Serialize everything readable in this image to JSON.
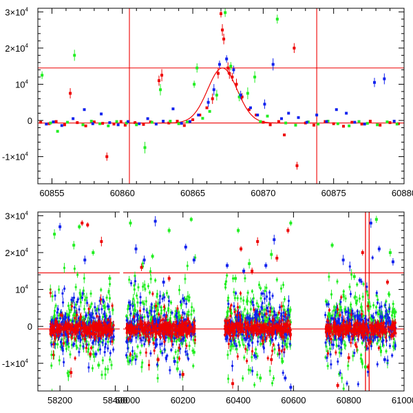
{
  "colors": {
    "red": "#ee0000",
    "green": "#22ee22",
    "blue": "#1122ee",
    "frame": "#000000"
  },
  "chart_data": [
    {
      "type": "scatter",
      "xlim": [
        60854,
        60880
      ],
      "ylim": [
        -17500,
        31000
      ],
      "xticks": [
        {
          "v": 60855,
          "label": "60855"
        },
        {
          "v": 60860,
          "label": "60860"
        },
        {
          "v": 60865,
          "label": "60865"
        },
        {
          "v": 60870,
          "label": "60870"
        },
        {
          "v": 60875,
          "label": "60875"
        },
        {
          "v": 60880,
          "label": "60880"
        }
      ],
      "yticks": [
        {
          "v": 30000,
          "base": "3×10",
          "exp": "4"
        },
        {
          "v": 20000,
          "base": "2×10",
          "exp": "4"
        },
        {
          "v": 10000,
          "base": "10",
          "exp": "4"
        },
        {
          "v": 0,
          "base": "0",
          "exp": ""
        },
        {
          "v": -10000,
          "base": "-1×10",
          "exp": "4"
        }
      ],
      "hlines": [
        14500,
        -700
      ],
      "vlines": [
        60860.5,
        60873.8
      ],
      "model": {
        "type": "gaussian",
        "x0": 60867.1,
        "peak": 14500,
        "sigma": 1.05,
        "baseline": -700,
        "x_range": [
          60860.5,
          60873.8
        ]
      },
      "series": [
        {
          "color": "red",
          "points": [
            [
              60854.2,
              -500
            ],
            [
              60854.8,
              -900
            ],
            [
              60855.3,
              -300
            ],
            [
              60855.9,
              -1200
            ],
            [
              60856.3,
              7500
            ],
            [
              60856.8,
              -600
            ],
            [
              60857.4,
              -1500
            ],
            [
              60858.0,
              -400
            ],
            [
              60858.6,
              -800
            ],
            [
              60858.9,
              -10000
            ],
            [
              60859.4,
              -1000
            ],
            [
              60859.9,
              -300
            ],
            [
              60860.2,
              -1300
            ],
            [
              60860.9,
              -600
            ],
            [
              60861.5,
              -1100
            ],
            [
              60862.0,
              -400
            ],
            [
              60862.6,
              11000
            ],
            [
              60862.8,
              12500
            ],
            [
              60863.3,
              -700
            ],
            [
              60863.9,
              -200
            ],
            [
              60864.4,
              -1400
            ],
            [
              60865.0,
              200
            ],
            [
              60865.5,
              1500
            ],
            [
              60866.0,
              3500
            ],
            [
              60866.4,
              6000
            ],
            [
              60866.8,
              13000
            ],
            [
              60867.0,
              29500
            ],
            [
              60867.1,
              25000
            ],
            [
              60867.2,
              22500
            ],
            [
              60867.5,
              14500
            ],
            [
              60867.6,
              13000
            ],
            [
              60867.8,
              12000
            ],
            [
              60868.1,
              10000
            ],
            [
              60868.5,
              6500
            ],
            [
              60869.0,
              3000
            ],
            [
              60869.5,
              1500
            ],
            [
              60870.0,
              -500
            ],
            [
              60870.5,
              -1200
            ],
            [
              60871.1,
              -300
            ],
            [
              60871.5,
              -4000
            ],
            [
              60872.2,
              20000
            ],
            [
              60872.4,
              -12500
            ],
            [
              60873.0,
              -700
            ],
            [
              60873.6,
              -1300
            ],
            [
              60874.4,
              -300
            ],
            [
              60875.0,
              -900
            ],
            [
              60875.7,
              -1600
            ],
            [
              60876.3,
              -500
            ],
            [
              60877.0,
              -1000
            ],
            [
              60877.6,
              -200
            ],
            [
              60878.3,
              -1300
            ],
            [
              60879.0,
              -600
            ],
            [
              60879.6,
              -900
            ]
          ]
        },
        {
          "color": "green",
          "points": [
            [
              60854.3,
              12500
            ],
            [
              60854.9,
              -700
            ],
            [
              60855.4,
              -3000
            ],
            [
              60856.1,
              -500
            ],
            [
              60856.6,
              18000
            ],
            [
              60857.2,
              -1200
            ],
            [
              60857.8,
              -200
            ],
            [
              60858.4,
              -900
            ],
            [
              60859.0,
              -1500
            ],
            [
              60859.6,
              -300
            ],
            [
              60860.3,
              -700
            ],
            [
              60861.0,
              -1200
            ],
            [
              60861.6,
              -7500
            ],
            [
              60862.1,
              -500
            ],
            [
              60862.7,
              8500
            ],
            [
              60863.4,
              -200
            ],
            [
              60864.0,
              -900
            ],
            [
              60864.6,
              -400
            ],
            [
              60865.1,
              10000
            ],
            [
              60865.3,
              14500
            ],
            [
              60865.7,
              600
            ],
            [
              60866.2,
              2500
            ],
            [
              60866.7,
              7000
            ],
            [
              60867.3,
              29800
            ],
            [
              60867.7,
              15000
            ],
            [
              60868.3,
              6500
            ],
            [
              60868.9,
              7500
            ],
            [
              60869.4,
              12000
            ],
            [
              60869.8,
              -300
            ],
            [
              60870.3,
              1200
            ],
            [
              60871.0,
              28000
            ],
            [
              60871.6,
              -700
            ],
            [
              60872.3,
              -1300
            ],
            [
              60873.2,
              -400
            ],
            [
              60873.9,
              -1000
            ],
            [
              60874.6,
              -200
            ],
            [
              60875.3,
              -900
            ],
            [
              60876.1,
              -1500
            ],
            [
              60876.8,
              -300
            ],
            [
              60877.4,
              -800
            ],
            [
              60878.1,
              -1200
            ],
            [
              60878.8,
              -400
            ],
            [
              60879.5,
              -1000
            ]
          ]
        },
        {
          "color": "blue",
          "points": [
            [
              60854.6,
              -1000
            ],
            [
              60855.1,
              -400
            ],
            [
              60855.7,
              -1400
            ],
            [
              60856.5,
              500
            ],
            [
              60857.3,
              3000
            ],
            [
              60857.9,
              -900
            ],
            [
              60858.5,
              1800
            ],
            [
              60859.1,
              -600
            ],
            [
              60859.7,
              -1200
            ],
            [
              60860.4,
              -300
            ],
            [
              60861.2,
              -900
            ],
            [
              60861.8,
              500
            ],
            [
              60862.4,
              -1000
            ],
            [
              60862.9,
              -200
            ],
            [
              60863.6,
              3200
            ],
            [
              60864.2,
              -800
            ],
            [
              60864.8,
              -300
            ],
            [
              60865.4,
              1500
            ],
            [
              60866.1,
              5000
            ],
            [
              60866.5,
              8500
            ],
            [
              60866.9,
              15500
            ],
            [
              60867.4,
              17000
            ],
            [
              60867.9,
              14000
            ],
            [
              60868.4,
              7000
            ],
            [
              60869.1,
              3500
            ],
            [
              60869.6,
              1500
            ],
            [
              60870.1,
              4500
            ],
            [
              60870.7,
              15500
            ],
            [
              60871.3,
              500
            ],
            [
              60871.8,
              2000
            ],
            [
              60872.5,
              800
            ],
            [
              60873.1,
              -500
            ],
            [
              60873.8,
              1500
            ],
            [
              60874.5,
              -300
            ],
            [
              60875.2,
              3000
            ],
            [
              60875.9,
              2000
            ],
            [
              60876.5,
              -500
            ],
            [
              60877.2,
              -1000
            ],
            [
              60877.9,
              10500
            ],
            [
              60878.6,
              11500
            ],
            [
              60879.3,
              -200
            ]
          ]
        }
      ]
    },
    {
      "type": "scatter",
      "xlim": [
        58120,
        61000
      ],
      "ylim": [
        -17500,
        31000
      ],
      "breaks": [
        [
          58415,
          59985
        ]
      ],
      "xticks": [
        {
          "v": 58200,
          "label": "58200"
        },
        {
          "v": 58400,
          "label": "58400"
        },
        {
          "v": 60000,
          "label": "60000"
        },
        {
          "v": 60200,
          "label": "60200"
        },
        {
          "v": 60400,
          "label": "60400"
        },
        {
          "v": 60600,
          "label": "60600"
        },
        {
          "v": 60800,
          "label": "60800"
        },
        {
          "v": 61000,
          "label": "61000"
        }
      ],
      "yticks": [
        {
          "v": 30000,
          "base": "3×10",
          "exp": "4"
        },
        {
          "v": 20000,
          "base": "2×10",
          "exp": "4"
        },
        {
          "v": 10000,
          "base": "10",
          "exp": "4"
        },
        {
          "v": 0,
          "base": "0",
          "exp": ""
        },
        {
          "v": -10000,
          "base": "-1×10",
          "exp": "4"
        }
      ],
      "hlines": [
        14500,
        -700
      ],
      "vlines": [
        60860.5,
        60873.8
      ],
      "clusters": [
        [
          58165,
          58395
        ],
        [
          59995,
          60245
        ],
        [
          60350,
          60590
        ],
        [
          60715,
          60970
        ]
      ],
      "series": [
        {
          "color": "red",
          "outliers": [
            [
              58240,
              -12500
            ],
            [
              58280,
              28000
            ],
            [
              58300,
              27500
            ],
            [
              58350,
              23000
            ],
            [
              58310,
              -7500
            ],
            [
              60050,
              16000
            ],
            [
              60110,
              -9000
            ],
            [
              60150,
              13000
            ],
            [
              60200,
              -13000
            ],
            [
              60380,
              -15500
            ],
            [
              60410,
              21000
            ],
            [
              60450,
              15000
            ],
            [
              60470,
              23000
            ],
            [
              60520,
              -9000
            ],
            [
              60540,
              18500
            ],
            [
              60580,
              26000
            ],
            [
              60760,
              -16000
            ],
            [
              60800,
              -8500
            ],
            [
              60850,
              20000
            ],
            [
              60870,
              -11000
            ],
            [
              60940,
              12000
            ]
          ]
        },
        {
          "color": "green",
          "outliers": [
            [
              58180,
              25000
            ],
            [
              58250,
              22000
            ],
            [
              58270,
              27000
            ],
            [
              58320,
              20000
            ],
            [
              58340,
              -10500
            ],
            [
              58380,
              13000
            ],
            [
              60010,
              28000
            ],
            [
              60020,
              -8500
            ],
            [
              60090,
              19000
            ],
            [
              60150,
              26000
            ],
            [
              60180,
              -11500
            ],
            [
              60230,
              29000
            ],
            [
              60240,
              -7000
            ],
            [
              60390,
              13000
            ],
            [
              60400,
              26000
            ],
            [
              60440,
              17000
            ],
            [
              60480,
              -14000
            ],
            [
              60520,
              19500
            ],
            [
              60560,
              -9500
            ],
            [
              60590,
              28000
            ],
            [
              60740,
              22000
            ],
            [
              60820,
              13500
            ],
            [
              60860,
              -11000
            ],
            [
              60900,
              29000
            ],
            [
              60950,
              20000
            ]
          ]
        },
        {
          "color": "blue",
          "outliers": [
            [
              58200,
              27000
            ],
            [
              58290,
              18000
            ],
            [
              58330,
              -7500
            ],
            [
              60030,
              21000
            ],
            [
              60060,
              18000
            ],
            [
              60100,
              28500
            ],
            [
              60130,
              12000
            ],
            [
              60170,
              -9500
            ],
            [
              60210,
              21500
            ],
            [
              60240,
              18000
            ],
            [
              60360,
              16500
            ],
            [
              60420,
              15000
            ],
            [
              60500,
              16500
            ],
            [
              60530,
              23500
            ],
            [
              60570,
              -14000
            ],
            [
              60590,
              -16500
            ],
            [
              60780,
              18000
            ],
            [
              60840,
              12500
            ],
            [
              60880,
              28000
            ],
            [
              60910,
              21000
            ],
            [
              60930,
              -9000
            ],
            [
              60960,
              17500
            ]
          ]
        }
      ]
    }
  ]
}
